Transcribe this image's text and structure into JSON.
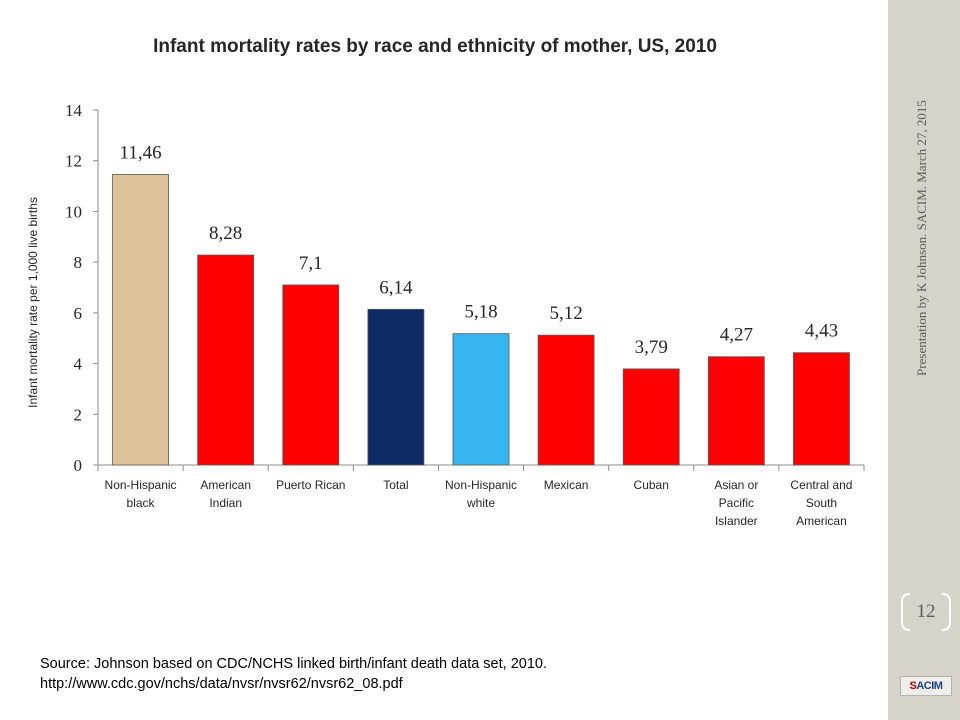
{
  "slide": {
    "side_caption": "Presentation by K Johnson. SACIM. March 27, 2015",
    "page_number": "12",
    "logo_text": "SACIM",
    "source_line1": "Source: Johnson based on  CDC/NCHS linked birth/infant death data set, 2010.",
    "source_line2": "http://www.cdc.gov/nchs/data/nvsr/nvsr62/nvsr62_08.pdf"
  },
  "chart_data": {
    "type": "bar",
    "title": "Infant mortality rates by race and ethnicity of mother, US, 2010",
    "ylabel": "Infant mortality rate per 1,000 live births",
    "xlabel": "",
    "ylim": [
      0,
      14
    ],
    "yticks": [
      0,
      2,
      4,
      6,
      8,
      10,
      12,
      14
    ],
    "grid": false,
    "categories": [
      [
        "Non-Hispanic",
        "black"
      ],
      [
        "American",
        "Indian"
      ],
      [
        "Puerto Rican"
      ],
      [
        "Total"
      ],
      [
        "Non-Hispanic",
        "white"
      ],
      [
        "Mexican"
      ],
      [
        "Cuban"
      ],
      [
        "Asian or",
        "Pacific",
        "Islander"
      ],
      [
        "Central and",
        "South",
        "American"
      ]
    ],
    "values": [
      11.46,
      8.28,
      7.1,
      6.14,
      5.18,
      5.12,
      3.79,
      4.27,
      4.43
    ],
    "value_labels": [
      "11,46",
      "8,28",
      "7,1",
      "6,14",
      "5,18",
      "5,12",
      "3,79",
      "4,27",
      "4,43"
    ],
    "bar_colors": [
      "#dcc39a",
      "#ff0000",
      "#ff0000",
      "#0b2a66",
      "#36b4f0",
      "#ff0000",
      "#ff0000",
      "#ff0000",
      "#ff0000"
    ]
  }
}
